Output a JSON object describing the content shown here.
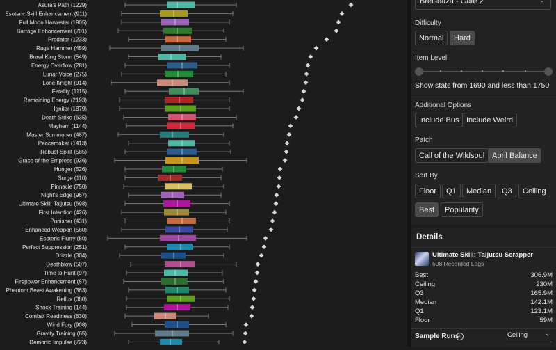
{
  "chart_data": {
    "type": "box",
    "axis_note": "no visible axis; values read by relative position only",
    "rows": [
      {
        "label": "Asura's Path (1229)",
        "whisker_lo": 180,
        "q1": 240,
        "median": 255,
        "q3": 280,
        "whisker_hi": 340,
        "best": 505,
        "color": "#4fb7a6"
      },
      {
        "label": "Esoteric Skill Enhancement (911)",
        "whisker_lo": 175,
        "q1": 230,
        "median": 250,
        "q3": 270,
        "whisker_hi": 335,
        "best": 492,
        "color": "#a99a1c"
      },
      {
        "label": "Full Moon Harvester (1905)",
        "whisker_lo": 175,
        "q1": 232,
        "median": 252,
        "q3": 272,
        "whisker_hi": 330,
        "best": 487,
        "color": "#9b64b5"
      },
      {
        "label": "Barrage Enhancement (701)",
        "whisker_lo": 170,
        "q1": 235,
        "median": 255,
        "q3": 276,
        "whisker_hi": 322,
        "best": 484,
        "color": "#2f7a2f"
      },
      {
        "label": "Predator (1233)",
        "whisker_lo": 185,
        "q1": 238,
        "median": 255,
        "q3": 275,
        "whisker_hi": 325,
        "best": 470,
        "color": "#c66a3c"
      },
      {
        "label": "Rage Hammer (459)",
        "whisker_lo": 158,
        "q1": 232,
        "median": 258,
        "q3": 286,
        "whisker_hi": 350,
        "best": 455,
        "color": "#607d8b"
      },
      {
        "label": "Brawl King Storm (549)",
        "whisker_lo": 185,
        "q1": 228,
        "median": 246,
        "q3": 268,
        "whisker_hi": 318,
        "best": 447,
        "color": "#4fb7a6"
      },
      {
        "label": "Energy Overflow (281)",
        "whisker_lo": 180,
        "q1": 240,
        "median": 262,
        "q3": 284,
        "whisker_hi": 330,
        "best": 443,
        "color": "#2c5d8a"
      },
      {
        "label": "Lunar Voice (275)",
        "whisker_lo": 175,
        "q1": 237,
        "median": 256,
        "q3": 278,
        "whisker_hi": 325,
        "best": 441,
        "color": "#1f8a3a"
      },
      {
        "label": "Lone Knight (914)",
        "whisker_lo": 160,
        "q1": 226,
        "median": 248,
        "q3": 270,
        "whisker_hi": 330,
        "best": 440,
        "color": "#c98a7a"
      },
      {
        "label": "Ferality (1115)",
        "whisker_lo": 180,
        "q1": 243,
        "median": 265,
        "q3": 286,
        "whisker_hi": 350,
        "best": 437,
        "color": "#3d8f5c"
      },
      {
        "label": "Remaining Energy (2193)",
        "whisker_lo": 172,
        "q1": 237,
        "median": 258,
        "q3": 278,
        "whisker_hi": 330,
        "best": 435,
        "color": "#b22222"
      },
      {
        "label": "Igniter (1879)",
        "whisker_lo": 172,
        "q1": 237,
        "median": 260,
        "q3": 282,
        "whisker_hi": 330,
        "best": 430,
        "color": "#5b9e1a"
      },
      {
        "label": "Death Strike (635)",
        "whisker_lo": 178,
        "q1": 242,
        "median": 262,
        "q3": 282,
        "whisker_hi": 340,
        "best": 426,
        "color": "#d05070"
      },
      {
        "label": "Mayhem (1144)",
        "whisker_lo": 182,
        "q1": 240,
        "median": 260,
        "q3": 280,
        "whisker_hi": 335,
        "best": 418,
        "color": "#d0283c"
      },
      {
        "label": "Master Summoner (487)",
        "whisker_lo": 170,
        "q1": 230,
        "median": 248,
        "q3": 272,
        "whisker_hi": 322,
        "best": 416,
        "color": "#2a7a7a"
      },
      {
        "label": "Peacemaker (1413)",
        "whisker_lo": 185,
        "q1": 242,
        "median": 262,
        "q3": 280,
        "whisker_hi": 330,
        "best": 413,
        "color": "#4fb7a6"
      },
      {
        "label": "Robust Spirit (585)",
        "whisker_lo": 180,
        "q1": 240,
        "median": 262,
        "q3": 283,
        "whisker_hi": 332,
        "best": 412,
        "color": "#2c5d8a"
      },
      {
        "label": "Grace of the Empress (936)",
        "whisker_lo": 165,
        "q1": 238,
        "median": 262,
        "q3": 286,
        "whisker_hi": 355,
        "best": 410,
        "color": "#c8961e"
      },
      {
        "label": "Hunger (526)",
        "whisker_lo": 180,
        "q1": 233,
        "median": 250,
        "q3": 268,
        "whisker_hi": 320,
        "best": 403,
        "color": "#1f8a3a"
      },
      {
        "label": "Surge (110)",
        "whisker_lo": 180,
        "q1": 227,
        "median": 245,
        "q3": 262,
        "whisker_hi": 318,
        "best": 402,
        "color": "#a52a2a"
      },
      {
        "label": "Pinnacle (750)",
        "whisker_lo": 178,
        "q1": 237,
        "median": 257,
        "q3": 276,
        "whisker_hi": 322,
        "best": 401,
        "color": "#d8c060"
      },
      {
        "label": "Night's Edge (967)",
        "whisker_lo": 185,
        "q1": 232,
        "median": 248,
        "q3": 265,
        "whisker_hi": 318,
        "best": 398,
        "color": "#9b64b5"
      },
      {
        "label": "Ultimate Skill: Taijutsu (698)",
        "whisker_lo": 180,
        "q1": 235,
        "median": 255,
        "q3": 274,
        "whisker_hi": 330,
        "best": 397,
        "color": "#b0179e"
      },
      {
        "label": "First Intention (426)",
        "whisker_lo": 175,
        "q1": 236,
        "median": 255,
        "q3": 272,
        "whisker_hi": 325,
        "best": 395,
        "color": "#9a8a3a"
      },
      {
        "label": "Punisher (431)",
        "whisker_lo": 180,
        "q1": 240,
        "median": 262,
        "q3": 282,
        "whisker_hi": 330,
        "best": 392,
        "color": "#c66a3c"
      },
      {
        "label": "Enhanced Weapon (580)",
        "whisker_lo": 175,
        "q1": 238,
        "median": 258,
        "q3": 278,
        "whisker_hi": 327,
        "best": 390,
        "color": "#3a4aa0"
      },
      {
        "label": "Esoteric Flurry (80)",
        "whisker_lo": 155,
        "q1": 230,
        "median": 257,
        "q3": 282,
        "whisker_hi": 355,
        "best": 382,
        "color": "#9b4a9b"
      },
      {
        "label": "Perfect Suppression (251)",
        "whisker_lo": 180,
        "q1": 240,
        "median": 260,
        "q3": 277,
        "whisker_hi": 330,
        "best": 380,
        "color": "#1f8ab0"
      },
      {
        "label": "Drizzle (304)",
        "whisker_lo": 172,
        "q1": 232,
        "median": 250,
        "q3": 267,
        "whisker_hi": 322,
        "best": 376,
        "color": "#1f4f8a"
      },
      {
        "label": "Deathblow (507)",
        "whisker_lo": 188,
        "q1": 237,
        "median": 260,
        "q3": 280,
        "whisker_hi": 340,
        "best": 371,
        "color": "#b05090"
      },
      {
        "label": "Time to Hunt (97)",
        "whisker_lo": 182,
        "q1": 236,
        "median": 252,
        "q3": 270,
        "whisker_hi": 320,
        "best": 370,
        "color": "#4fb7a6"
      },
      {
        "label": "Firepower Enhancement (87)",
        "whisker_lo": 178,
        "q1": 232,
        "median": 252,
        "q3": 270,
        "whisker_hi": 322,
        "best": 368,
        "color": "#2f6a2f"
      },
      {
        "label": "Phantom Beast Awakening (363)",
        "whisker_lo": 185,
        "q1": 238,
        "median": 255,
        "q3": 272,
        "whisker_hi": 325,
        "best": 366,
        "color": "#1f8a6a"
      },
      {
        "label": "Reflux (380)",
        "whisker_lo": 182,
        "q1": 240,
        "median": 260,
        "q3": 280,
        "whisker_hi": 330,
        "best": 365,
        "color": "#5b9e1a"
      },
      {
        "label": "Shock Training (144)",
        "whisker_lo": 182,
        "q1": 236,
        "median": 255,
        "q3": 274,
        "whisker_hi": 328,
        "best": 363,
        "color": "#b0179e"
      },
      {
        "label": "Combat Readiness (630)",
        "whisker_lo": 180,
        "q1": 222,
        "median": 238,
        "q3": 253,
        "whisker_hi": 300,
        "best": 362,
        "color": "#c98a7a"
      },
      {
        "label": "Wind Fury (908)",
        "whisker_lo": 190,
        "q1": 237,
        "median": 255,
        "q3": 272,
        "whisker_hi": 325,
        "best": 354,
        "color": "#1f4f8a"
      },
      {
        "label": "Gravity Training (65)",
        "whisker_lo": 165,
        "q1": 223,
        "median": 248,
        "q3": 272,
        "whisker_hi": 335,
        "best": 353,
        "color": "#607d8b"
      },
      {
        "label": "Demonic Impulse (723)",
        "whisker_lo": 185,
        "q1": 230,
        "median": 245,
        "q3": 262,
        "whisker_hi": 315,
        "best": 352,
        "color": "#1f8ab0"
      }
    ]
  },
  "raid_select": {
    "value": "Brelshaza - Gate 2"
  },
  "difficulty": {
    "label": "Difficulty",
    "options": [
      "Normal",
      "Hard"
    ],
    "active": "Hard"
  },
  "item_level": {
    "label": "Item Level",
    "summary": "Show stats from 1690 and less than 1750"
  },
  "additional": {
    "label": "Additional Options",
    "options": [
      "Include Bus",
      "Include Weird"
    ]
  },
  "patch": {
    "label": "Patch",
    "options": [
      "Call of the Wildsoul",
      "April Balance"
    ],
    "active": "April Balance"
  },
  "sort_by": {
    "label": "Sort By",
    "options": [
      "Floor",
      "Q1",
      "Median",
      "Q3",
      "Ceiling",
      "Best",
      "Popularity"
    ],
    "active": "Best"
  },
  "details": {
    "title": "Details",
    "item_name": "Ultimate Skill: Taijutsu Scrapper",
    "item_sub": "698 Recorded Logs",
    "stats": [
      {
        "label": "Best",
        "value": "306.9M"
      },
      {
        "label": "Ceiling",
        "value": "230M"
      },
      {
        "label": "Q3",
        "value": "165.9M"
      },
      {
        "label": "Median",
        "value": "142.1M"
      },
      {
        "label": "Q1",
        "value": "123.1M"
      },
      {
        "label": "Floor",
        "value": "59M"
      }
    ],
    "sample_runs_label": "Sample Runs",
    "sample_runs_value": "Ceiling"
  },
  "colors": {
    "accent": "#4a4a4a",
    "background": "#1c1c1c",
    "panel": "#222222"
  }
}
